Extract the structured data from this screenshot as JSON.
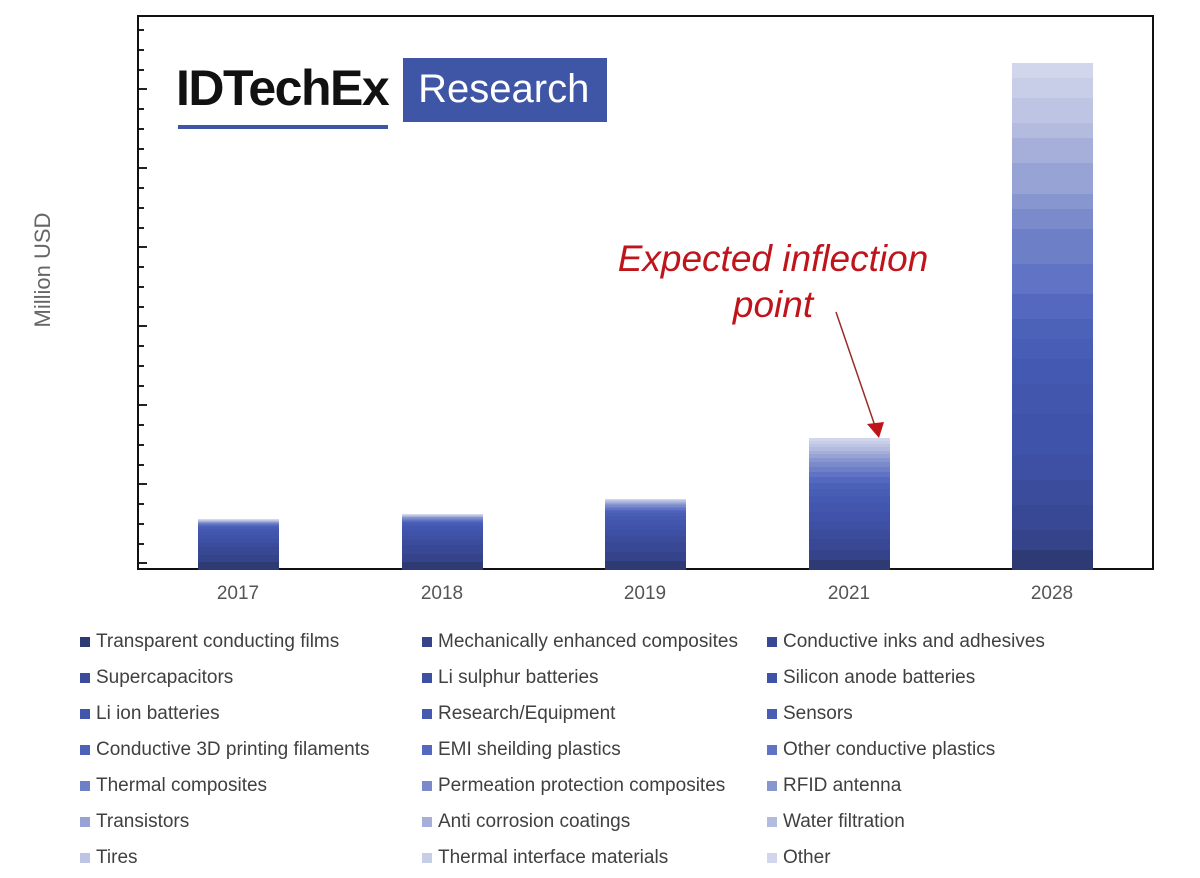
{
  "logo": {
    "brand": "IDTechEx",
    "badge": "Research",
    "brand_color": "#3f56a6"
  },
  "annotation": {
    "line1": "Expected inflection",
    "line2": "point",
    "color": "#c0141b"
  },
  "chart_data": {
    "type": "bar",
    "stacked": true,
    "title": "",
    "xlabel": "",
    "ylabel": "Million USD",
    "categories": [
      "2017",
      "2018",
      "2019",
      "2021",
      "2028"
    ],
    "totals_relative": [
      10,
      11,
      14,
      26,
      100
    ],
    "ylim": [
      0,
      110
    ],
    "y_tick_labels_visible": false,
    "grid": false,
    "legend_position": "bottom",
    "annotations": [
      {
        "text": "Expected inflection point",
        "target": "2021",
        "color": "#c0141b",
        "arrow": true
      }
    ],
    "series": [
      {
        "name": "Transparent conducting films",
        "color": "#2d3a73",
        "values": [
          1.5,
          1.6,
          1.8,
          2.0,
          4.0
        ]
      },
      {
        "name": "Mechanically enhanced composites",
        "color": "#34438a",
        "values": [
          1.5,
          1.6,
          1.8,
          2.0,
          4.0
        ]
      },
      {
        "name": "Conductive inks and adhesives",
        "color": "#384895",
        "values": [
          1.5,
          1.6,
          1.8,
          2.0,
          5.0
        ]
      },
      {
        "name": "Supercapacitors",
        "color": "#3b4c9c",
        "values": [
          0.9,
          1.0,
          1.2,
          1.8,
          5.0
        ]
      },
      {
        "name": "Li sulphur batteries",
        "color": "#3e50a3",
        "values": [
          0.8,
          0.9,
          1.1,
          1.8,
          5.0
        ]
      },
      {
        "name": "Silicon anode batteries",
        "color": "#4053aa",
        "values": [
          0.8,
          0.9,
          1.1,
          1.8,
          8.0
        ]
      },
      {
        "name": "Li ion batteries",
        "color": "#4256ae",
        "values": [
          0.7,
          0.8,
          1.0,
          1.6,
          6.0
        ]
      },
      {
        "name": "Research/Equipment",
        "color": "#4459b2",
        "values": [
          0.5,
          0.5,
          0.7,
          1.4,
          5.0
        ]
      },
      {
        "name": "Sensors",
        "color": "#485db5",
        "values": [
          0.3,
          0.3,
          0.5,
          1.4,
          4.0
        ]
      },
      {
        "name": "Conductive 3D printing filaments",
        "color": "#4c62b9",
        "values": [
          0.2,
          0.2,
          0.4,
          1.2,
          4.0
        ]
      },
      {
        "name": "EMI sheilding plastics",
        "color": "#5468bf",
        "values": [
          0.2,
          0.2,
          0.3,
          1.1,
          5.0
        ]
      },
      {
        "name": "Other conductive plastics",
        "color": "#6073c4",
        "values": [
          0.2,
          0.2,
          0.3,
          1.0,
          6.0
        ]
      },
      {
        "name": "Thermal composites",
        "color": "#6d7fc7",
        "values": [
          0.2,
          0.2,
          0.3,
          1.0,
          7.0
        ]
      },
      {
        "name": "Permeation protection composites",
        "color": "#7a8acb",
        "values": [
          0.1,
          0.2,
          0.3,
          0.9,
          4.0
        ]
      },
      {
        "name": "RFID antenna",
        "color": "#8896cf",
        "values": [
          0.1,
          0.1,
          0.2,
          0.8,
          3.0
        ]
      },
      {
        "name": "Transistors",
        "color": "#97a3d4",
        "values": [
          0.1,
          0.1,
          0.2,
          0.8,
          6.0
        ]
      },
      {
        "name": "Anti corrosion coatings",
        "color": "#a5afd9",
        "values": [
          0.1,
          0.1,
          0.2,
          0.7,
          5.0
        ]
      },
      {
        "name": "Water filtration",
        "color": "#b3bbdf",
        "values": [
          0.1,
          0.1,
          0.2,
          0.7,
          3.0
        ]
      },
      {
        "name": "Tires",
        "color": "#bec5e4",
        "values": [
          0.1,
          0.1,
          0.2,
          0.6,
          5.0
        ]
      },
      {
        "name": "Thermal interface materials",
        "color": "#c8cde8",
        "values": [
          0.1,
          0.1,
          0.1,
          0.6,
          4.0
        ]
      },
      {
        "name": "Other",
        "color": "#d2d6ec",
        "values": [
          0.1,
          0.1,
          0.1,
          0.5,
          3.0
        ]
      }
    ]
  }
}
